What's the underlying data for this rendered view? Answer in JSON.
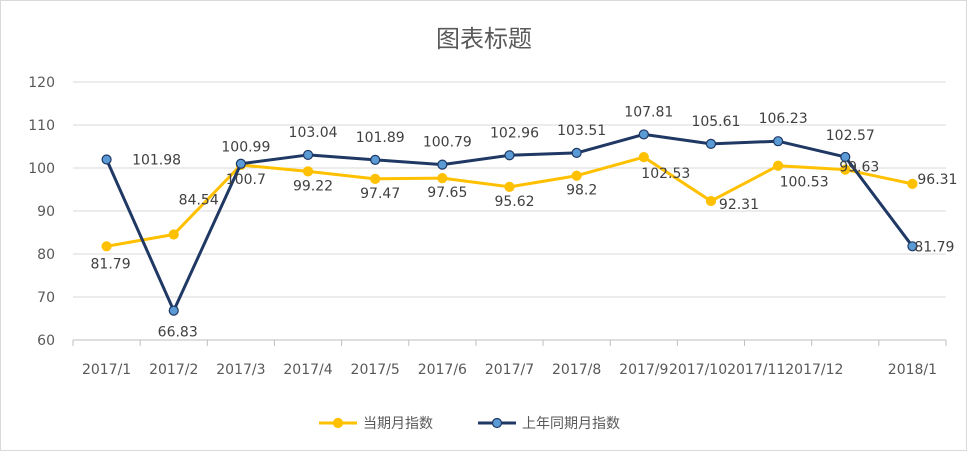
{
  "chart_data": {
    "type": "line",
    "title": "图表标题",
    "categories": [
      "2017/1",
      "2017/2",
      "2017/3",
      "2017/4",
      "2017/5",
      "2017/6",
      "2017/7",
      "2017/8",
      "2017/9",
      "2017/10",
      "2017/11",
      "2017/12",
      "2018/1"
    ],
    "category_labels": [
      "2017/1",
      "2017/2",
      "2017/3",
      "2017/4",
      "2017/5",
      "2017/6",
      "2017/7",
      "2017/8",
      "2017/9",
      "2017/102017/112017/12",
      "",
      "",
      "2018/1"
    ],
    "ylim": [
      60,
      120
    ],
    "yticks": [
      60,
      70,
      80,
      90,
      100,
      110,
      120
    ],
    "grid": true,
    "legend_position": "bottom",
    "series": [
      {
        "name": "当期月指数",
        "color": "#FFC000",
        "marker": "circle",
        "values": [
          81.79,
          84.54,
          100.7,
          99.22,
          97.47,
          97.65,
          95.62,
          98.2,
          102.53,
          92.31,
          100.53,
          99.63,
          96.31
        ]
      },
      {
        "name": "上年同期月指数",
        "color": "#1F3864",
        "marker_color": "#5B9BD5",
        "marker": "circle",
        "values": [
          101.98,
          66.83,
          100.99,
          103.04,
          101.89,
          100.79,
          102.96,
          103.51,
          107.81,
          105.61,
          106.23,
          102.57,
          81.79
        ]
      }
    ]
  }
}
